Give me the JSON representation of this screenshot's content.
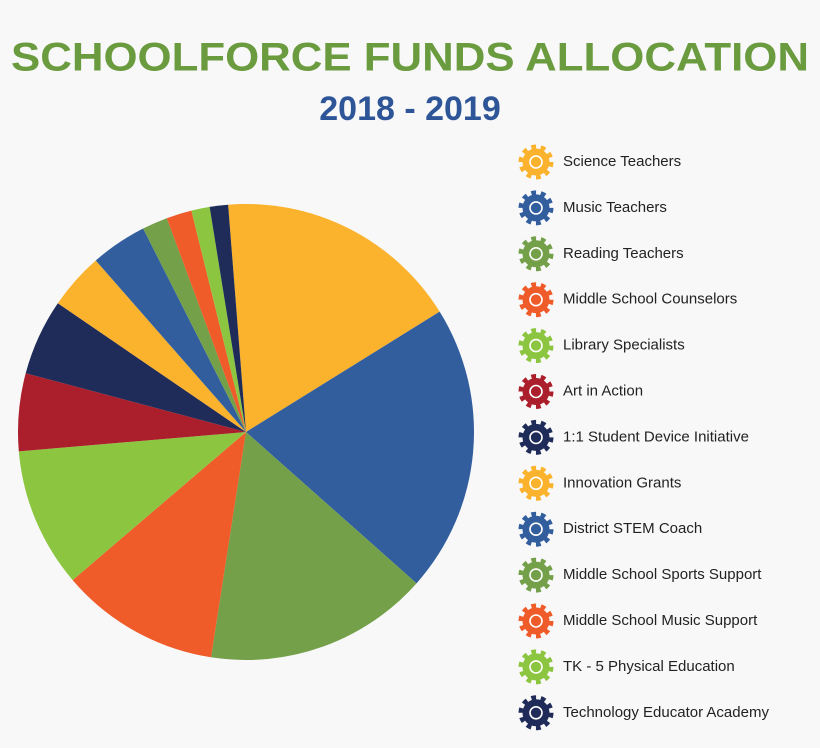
{
  "chart_data": {
    "type": "pie",
    "title": "SCHOOLFORCE FUNDS ALLOCATION",
    "subtitle": "2018 - 2019",
    "categories": [
      "Science Teachers",
      "Music Teachers",
      "Reading Teachers",
      "Middle School Counselors",
      "Library Specialists",
      "Art in Action",
      "1:1 Student Device Initiative",
      "Innovation Grants",
      "District STEM Coach",
      "Middle School Sports Support",
      "Middle School Music Support",
      "TK - 5 Physical Education",
      "Technology Educator Academy"
    ],
    "values": [
      17.4,
      20.4,
      15.9,
      11.3,
      9.9,
      5.5,
      5.4,
      4.0,
      4.0,
      1.8,
      1.8,
      1.3,
      1.3
    ],
    "colors": [
      "#fbb22c",
      "#325e9e",
      "#73a048",
      "#ef5b29",
      "#8cc640",
      "#ab1e2b",
      "#1f2b58",
      "#fbb22c",
      "#325e9e",
      "#73a048",
      "#ef5b29",
      "#8cc640",
      "#1f2b58"
    ]
  }
}
